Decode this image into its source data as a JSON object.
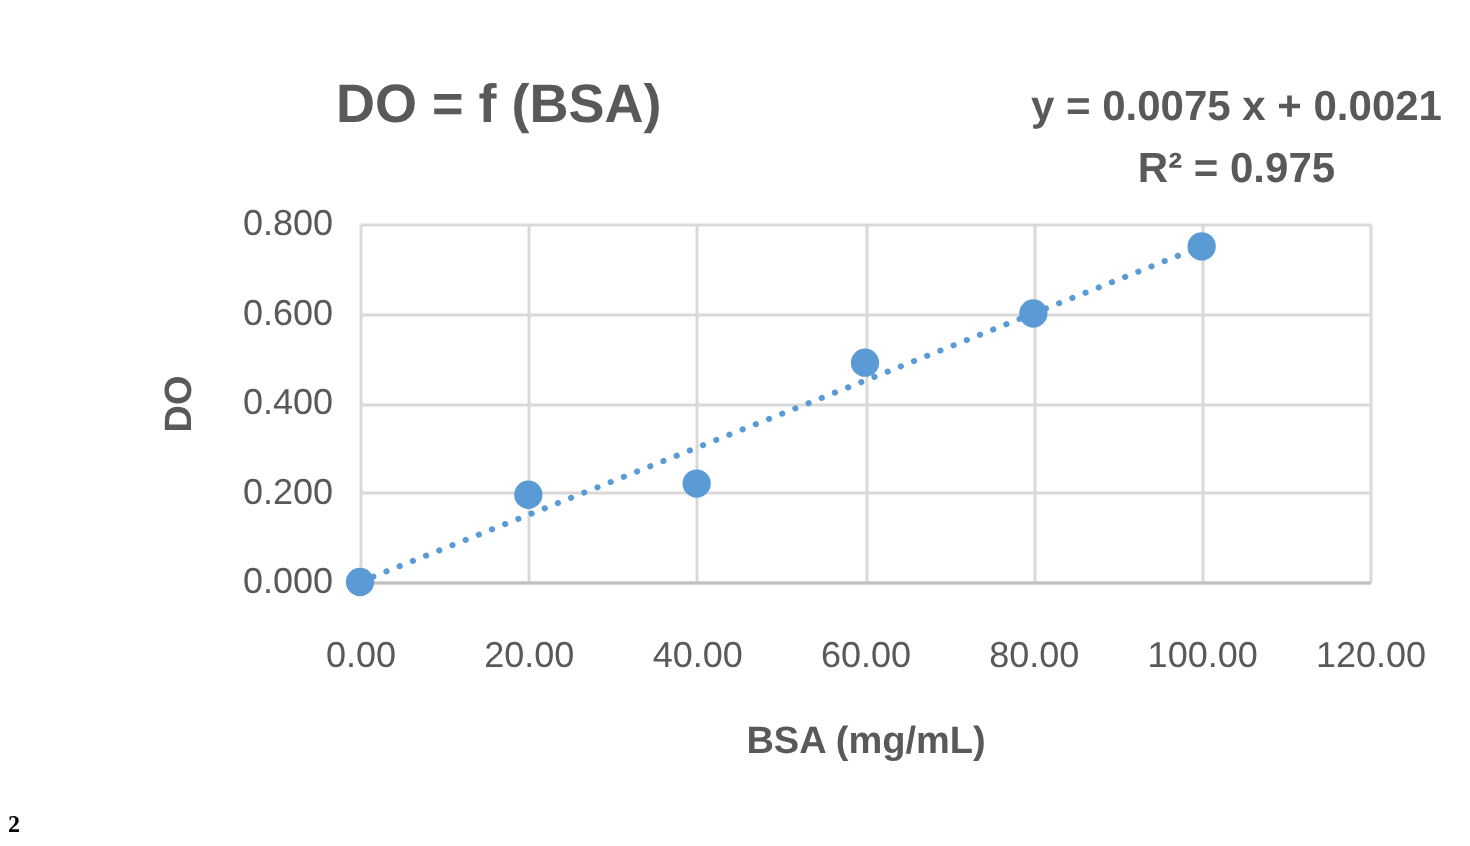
{
  "chart_data": {
    "type": "scatter",
    "title": "DO = f (BSA)",
    "xlabel": "BSA (mg/mL)",
    "ylabel": "DO",
    "annotations": [
      "y = 0.0075 x + 0.0021",
      "R² = 0.975",
      "2"
    ],
    "xlim": [
      0,
      120
    ],
    "ylim": [
      0,
      0.8
    ],
    "xticks": [
      {
        "value": 0,
        "label": "0.00"
      },
      {
        "value": 20,
        "label": "20.00"
      },
      {
        "value": 40,
        "label": "40.00"
      },
      {
        "value": 60,
        "label": "60.00"
      },
      {
        "value": 80,
        "label": "80.00"
      },
      {
        "value": 100,
        "label": "100.00"
      },
      {
        "value": 120,
        "label": "120.00"
      }
    ],
    "yticks": [
      {
        "value": 0,
        "label": "0.000"
      },
      {
        "value": 0.2,
        "label": "0.200"
      },
      {
        "value": 0.4,
        "label": "0.400"
      },
      {
        "value": 0.6,
        "label": "0.600"
      },
      {
        "value": 0.8,
        "label": "0.800"
      }
    ],
    "grid": true,
    "series": [
      {
        "color": "#5b9bd5",
        "marker": "circle",
        "x": [
          0,
          20,
          40,
          60,
          80,
          100
        ],
        "values": [
          0,
          0.195,
          0.22,
          0.49,
          0.6,
          0.75
        ]
      },
      {
        "type": "line",
        "color": "#5b9bd5",
        "line_style": "dotted",
        "x": [
          0,
          100
        ],
        "values": [
          0,
          0.75
        ]
      }
    ]
  }
}
